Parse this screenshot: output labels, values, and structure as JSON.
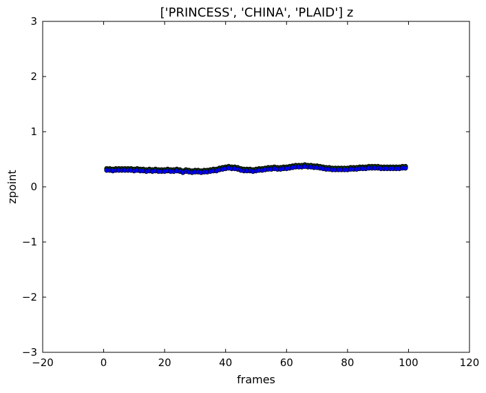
{
  "chart_data": {
    "type": "scatter",
    "title": "['PRINCESS', 'CHINA', 'PLAID'] z",
    "xlabel": "frames",
    "ylabel": "zpoint",
    "xlim": [
      -20,
      120
    ],
    "ylim": [
      -3,
      3
    ],
    "xticks": [
      -20,
      0,
      20,
      40,
      60,
      80,
      100,
      120
    ],
    "xtick_labels": [
      "−20",
      "0",
      "20",
      "40",
      "60",
      "80",
      "100",
      "120"
    ],
    "yticks": [
      -3,
      -2,
      -1,
      0,
      1,
      2,
      3
    ],
    "ytick_labels": [
      "−3",
      "−2",
      "−1",
      "0",
      "1",
      "2",
      "3"
    ],
    "grid": false,
    "legend": "none",
    "x": [
      1,
      2,
      3,
      4,
      5,
      6,
      7,
      8,
      9,
      10,
      11,
      12,
      13,
      14,
      15,
      16,
      17,
      18,
      19,
      20,
      21,
      22,
      23,
      24,
      25,
      26,
      27,
      28,
      29,
      30,
      31,
      32,
      33,
      34,
      35,
      36,
      37,
      38,
      39,
      40,
      41,
      42,
      43,
      44,
      45,
      46,
      47,
      48,
      49,
      50,
      51,
      52,
      53,
      54,
      55,
      56,
      57,
      58,
      59,
      60,
      61,
      62,
      63,
      64,
      65,
      66,
      67,
      68,
      69,
      70,
      71,
      72,
      73,
      74,
      75,
      76,
      77,
      78,
      79,
      80,
      81,
      82,
      83,
      84,
      85,
      86,
      87,
      88,
      89,
      90,
      91,
      92,
      93,
      94,
      95,
      96,
      97,
      98,
      99
    ],
    "series": [
      {
        "color": "#ff0000",
        "values": [
          0.33,
          0.33,
          0.32,
          0.33,
          0.33,
          0.33,
          0.33,
          0.33,
          0.33,
          0.32,
          0.33,
          0.32,
          0.32,
          0.31,
          0.32,
          0.31,
          0.32,
          0.31,
          0.31,
          0.31,
          0.32,
          0.31,
          0.31,
          0.32,
          0.31,
          0.29,
          0.31,
          0.3,
          0.29,
          0.3,
          0.3,
          0.29,
          0.3,
          0.3,
          0.31,
          0.32,
          0.32,
          0.34,
          0.35,
          0.36,
          0.37,
          0.36,
          0.36,
          0.35,
          0.33,
          0.32,
          0.32,
          0.32,
          0.31,
          0.32,
          0.33,
          0.33,
          0.34,
          0.35,
          0.35,
          0.36,
          0.35,
          0.35,
          0.36,
          0.36,
          0.37,
          0.38,
          0.39,
          0.39,
          0.39,
          0.4,
          0.39,
          0.39,
          0.38,
          0.38,
          0.37,
          0.36,
          0.35,
          0.35,
          0.34,
          0.34,
          0.34,
          0.34,
          0.34,
          0.34,
          0.35,
          0.35,
          0.35,
          0.36,
          0.36,
          0.36,
          0.37,
          0.37,
          0.37,
          0.37,
          0.36,
          0.36,
          0.36,
          0.36,
          0.36,
          0.36,
          0.36,
          0.37,
          0.37
        ]
      },
      {
        "color": "#008000",
        "values": [
          0.32,
          0.32,
          0.31,
          0.32,
          0.32,
          0.32,
          0.32,
          0.32,
          0.32,
          0.31,
          0.32,
          0.31,
          0.31,
          0.3,
          0.31,
          0.3,
          0.31,
          0.3,
          0.3,
          0.3,
          0.31,
          0.3,
          0.3,
          0.31,
          0.3,
          0.28,
          0.3,
          0.29,
          0.28,
          0.29,
          0.29,
          0.28,
          0.29,
          0.29,
          0.3,
          0.31,
          0.31,
          0.33,
          0.34,
          0.35,
          0.36,
          0.35,
          0.35,
          0.34,
          0.32,
          0.31,
          0.31,
          0.31,
          0.3,
          0.31,
          0.32,
          0.32,
          0.33,
          0.34,
          0.34,
          0.35,
          0.34,
          0.34,
          0.35,
          0.35,
          0.36,
          0.37,
          0.38,
          0.38,
          0.38,
          0.39,
          0.38,
          0.38,
          0.37,
          0.37,
          0.36,
          0.35,
          0.34,
          0.34,
          0.33,
          0.33,
          0.33,
          0.33,
          0.33,
          0.33,
          0.34,
          0.34,
          0.34,
          0.35,
          0.35,
          0.35,
          0.36,
          0.36,
          0.36,
          0.36,
          0.35,
          0.35,
          0.35,
          0.35,
          0.35,
          0.35,
          0.35,
          0.36,
          0.36
        ]
      },
      {
        "color": "#0000ff",
        "values": [
          0.3,
          0.3,
          0.29,
          0.3,
          0.3,
          0.3,
          0.3,
          0.3,
          0.3,
          0.29,
          0.3,
          0.29,
          0.29,
          0.28,
          0.29,
          0.28,
          0.29,
          0.28,
          0.28,
          0.28,
          0.29,
          0.28,
          0.28,
          0.29,
          0.28,
          0.26,
          0.28,
          0.27,
          0.26,
          0.27,
          0.27,
          0.26,
          0.27,
          0.27,
          0.28,
          0.29,
          0.29,
          0.31,
          0.32,
          0.33,
          0.34,
          0.33,
          0.33,
          0.32,
          0.3,
          0.29,
          0.29,
          0.29,
          0.28,
          0.29,
          0.3,
          0.3,
          0.31,
          0.32,
          0.32,
          0.33,
          0.32,
          0.32,
          0.33,
          0.33,
          0.34,
          0.35,
          0.36,
          0.36,
          0.36,
          0.37,
          0.36,
          0.36,
          0.35,
          0.35,
          0.34,
          0.33,
          0.32,
          0.32,
          0.31,
          0.31,
          0.31,
          0.31,
          0.31,
          0.31,
          0.32,
          0.32,
          0.32,
          0.33,
          0.33,
          0.33,
          0.34,
          0.34,
          0.34,
          0.34,
          0.33,
          0.33,
          0.33,
          0.33,
          0.33,
          0.33,
          0.33,
          0.34,
          0.34
        ]
      }
    ]
  }
}
